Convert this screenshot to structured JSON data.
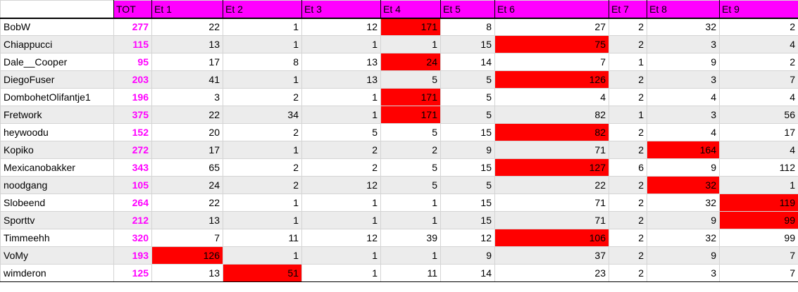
{
  "header": {
    "corner": "",
    "tot": "TOT",
    "stages": [
      "Et 1",
      "Et 2",
      "Et 3",
      "Et 4",
      "Et 5",
      "Et 6",
      "Et 7",
      "Et 8",
      "Et 9"
    ]
  },
  "highlight_color": "#ff0000",
  "header_color": "#ff00ff",
  "total_color": "#ff00ff",
  "rows": [
    {
      "name": "BobW",
      "tot": "277",
      "values": [
        "22",
        "1",
        "12",
        "171",
        "8",
        "27",
        "2",
        "32",
        "2"
      ],
      "highlight": [
        3
      ]
    },
    {
      "name": "Chiappucci",
      "tot": "115",
      "values": [
        "13",
        "1",
        "1",
        "1",
        "15",
        "75",
        "2",
        "3",
        "4"
      ],
      "highlight": [
        5
      ]
    },
    {
      "name": "Dale__Cooper",
      "tot": "95",
      "values": [
        "17",
        "8",
        "13",
        "24",
        "14",
        "7",
        "1",
        "9",
        "2"
      ],
      "highlight": [
        3
      ]
    },
    {
      "name": "DiegoFuser",
      "tot": "203",
      "values": [
        "41",
        "1",
        "13",
        "5",
        "5",
        "126",
        "2",
        "3",
        "7"
      ],
      "highlight": [
        5
      ]
    },
    {
      "name": "DombohetOlifantje1",
      "tot": "196",
      "values": [
        "3",
        "2",
        "1",
        "171",
        "5",
        "4",
        "2",
        "4",
        "4"
      ],
      "highlight": [
        3
      ]
    },
    {
      "name": "Fretwork",
      "tot": "375",
      "values": [
        "22",
        "34",
        "1",
        "171",
        "5",
        "82",
        "1",
        "3",
        "56"
      ],
      "highlight": [
        3
      ]
    },
    {
      "name": "heywoodu",
      "tot": "152",
      "values": [
        "20",
        "2",
        "5",
        "5",
        "15",
        "82",
        "2",
        "4",
        "17"
      ],
      "highlight": [
        5
      ]
    },
    {
      "name": "Kopiko",
      "tot": "272",
      "values": [
        "17",
        "1",
        "2",
        "2",
        "9",
        "71",
        "2",
        "164",
        "4"
      ],
      "highlight": [
        7
      ]
    },
    {
      "name": "Mexicanobakker",
      "tot": "343",
      "values": [
        "65",
        "2",
        "2",
        "5",
        "15",
        "127",
        "6",
        "9",
        "112"
      ],
      "highlight": [
        5
      ]
    },
    {
      "name": "noodgang",
      "tot": "105",
      "values": [
        "24",
        "2",
        "12",
        "5",
        "5",
        "22",
        "2",
        "32",
        "1"
      ],
      "highlight": [
        7
      ]
    },
    {
      "name": "Slobeend",
      "tot": "264",
      "values": [
        "22",
        "1",
        "1",
        "1",
        "15",
        "71",
        "2",
        "32",
        "119"
      ],
      "highlight": [
        8
      ]
    },
    {
      "name": "Sporttv",
      "tot": "212",
      "values": [
        "13",
        "1",
        "1",
        "1",
        "15",
        "71",
        "2",
        "9",
        "99"
      ],
      "highlight": [
        8
      ]
    },
    {
      "name": "Timmeehh",
      "tot": "320",
      "values": [
        "7",
        "11",
        "12",
        "39",
        "12",
        "106",
        "2",
        "32",
        "99"
      ],
      "highlight": [
        5
      ]
    },
    {
      "name": "VoMy",
      "tot": "193",
      "values": [
        "126",
        "1",
        "1",
        "1",
        "9",
        "37",
        "2",
        "9",
        "7"
      ],
      "highlight": [
        0
      ]
    },
    {
      "name": "wimderon",
      "tot": "125",
      "values": [
        "13",
        "51",
        "1",
        "11",
        "14",
        "23",
        "2",
        "3",
        "7"
      ],
      "highlight": [
        1
      ]
    }
  ]
}
